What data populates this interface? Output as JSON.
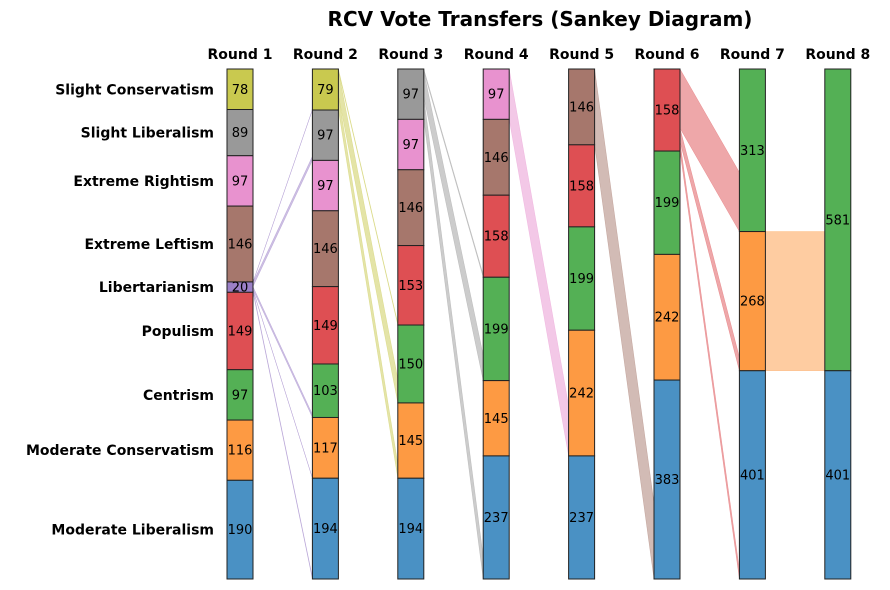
{
  "title": "RCV Vote Transfers (Sankey Diagram)",
  "colors": {
    "Slight Conservatism": "#c9c94f",
    "Slight Liberalism": "#999999",
    "Extreme Rightism": "#e892cf",
    "Extreme Leftism": "#a6776c",
    "Libertarianism": "#9b80c7",
    "Populism": "#de4f53",
    "Centrism": "#54b055",
    "Moderate Conservatism": "#fd9a43",
    "Moderate Liberalism": "#4a91c4"
  },
  "chart_data": {
    "type": "sankey",
    "title": "RCV Vote Transfers (Sankey Diagram)",
    "candidates": [
      "Slight Conservatism",
      "Slight Liberalism",
      "Extreme Rightism",
      "Extreme Leftism",
      "Libertarianism",
      "Populism",
      "Centrism",
      "Moderate Conservatism",
      "Moderate Liberalism"
    ],
    "rounds": [
      {
        "label": "Round 1",
        "segments": [
          {
            "candidate": "Slight Conservatism",
            "votes": 78
          },
          {
            "candidate": "Slight Liberalism",
            "votes": 89
          },
          {
            "candidate": "Extreme Rightism",
            "votes": 97
          },
          {
            "candidate": "Extreme Leftism",
            "votes": 146
          },
          {
            "candidate": "Libertarianism",
            "votes": 20
          },
          {
            "candidate": "Populism",
            "votes": 149
          },
          {
            "candidate": "Centrism",
            "votes": 97
          },
          {
            "candidate": "Moderate Conservatism",
            "votes": 116
          },
          {
            "candidate": "Moderate Liberalism",
            "votes": 190
          }
        ]
      },
      {
        "label": "Round 2",
        "segments": [
          {
            "candidate": "Slight Conservatism",
            "votes": 79
          },
          {
            "candidate": "Slight Liberalism",
            "votes": 97
          },
          {
            "candidate": "Extreme Rightism",
            "votes": 97
          },
          {
            "candidate": "Extreme Leftism",
            "votes": 146
          },
          {
            "candidate": "Populism",
            "votes": 149
          },
          {
            "candidate": "Centrism",
            "votes": 103
          },
          {
            "candidate": "Moderate Conservatism",
            "votes": 117
          },
          {
            "candidate": "Moderate Liberalism",
            "votes": 194
          }
        ]
      },
      {
        "label": "Round 3",
        "segments": [
          {
            "candidate": "Slight Liberalism",
            "votes": 97
          },
          {
            "candidate": "Extreme Rightism",
            "votes": 97
          },
          {
            "candidate": "Extreme Leftism",
            "votes": 146
          },
          {
            "candidate": "Populism",
            "votes": 153
          },
          {
            "candidate": "Centrism",
            "votes": 150
          },
          {
            "candidate": "Moderate Conservatism",
            "votes": 145
          },
          {
            "candidate": "Moderate Liberalism",
            "votes": 194
          }
        ]
      },
      {
        "label": "Round 4",
        "segments": [
          {
            "candidate": "Extreme Rightism",
            "votes": 97
          },
          {
            "candidate": "Extreme Leftism",
            "votes": 146
          },
          {
            "candidate": "Populism",
            "votes": 158
          },
          {
            "candidate": "Centrism",
            "votes": 199
          },
          {
            "candidate": "Moderate Conservatism",
            "votes": 145
          },
          {
            "candidate": "Moderate Liberalism",
            "votes": 237
          }
        ]
      },
      {
        "label": "Round 5",
        "segments": [
          {
            "candidate": "Extreme Leftism",
            "votes": 146
          },
          {
            "candidate": "Populism",
            "votes": 158
          },
          {
            "candidate": "Centrism",
            "votes": 199
          },
          {
            "candidate": "Moderate Conservatism",
            "votes": 242
          },
          {
            "candidate": "Moderate Liberalism",
            "votes": 237
          }
        ]
      },
      {
        "label": "Round 6",
        "segments": [
          {
            "candidate": "Populism",
            "votes": 158
          },
          {
            "candidate": "Centrism",
            "votes": 199
          },
          {
            "candidate": "Moderate Conservatism",
            "votes": 242
          },
          {
            "candidate": "Moderate Liberalism",
            "votes": 383
          }
        ]
      },
      {
        "label": "Round 7",
        "segments": [
          {
            "candidate": "Centrism",
            "votes": 313
          },
          {
            "candidate": "Moderate Conservatism",
            "votes": 268
          },
          {
            "candidate": "Moderate Liberalism",
            "votes": 401
          }
        ]
      },
      {
        "label": "Round 8",
        "segments": [
          {
            "candidate": "Centrism",
            "votes": 581
          },
          {
            "candidate": "Moderate Liberalism",
            "votes": 401
          }
        ]
      }
    ],
    "transfers": [
      {
        "from_round": 0,
        "from": "Libertarianism",
        "to": "Slight Conservatism",
        "votes": 1
      },
      {
        "from_round": 0,
        "from": "Libertarianism",
        "to": "Slight Liberalism",
        "votes": 8
      },
      {
        "from_round": 0,
        "from": "Libertarianism",
        "to": "Centrism",
        "votes": 6
      },
      {
        "from_round": 0,
        "from": "Libertarianism",
        "to": "Moderate Conservatism",
        "votes": 1
      },
      {
        "from_round": 0,
        "from": "Libertarianism",
        "to": "Moderate Liberalism",
        "votes": 4
      },
      {
        "from_round": 1,
        "from": "Slight Conservatism",
        "to": "Populism",
        "votes": 4
      },
      {
        "from_round": 1,
        "from": "Slight Conservatism",
        "to": "Centrism",
        "votes": 47
      },
      {
        "from_round": 1,
        "from": "Slight Conservatism",
        "to": "Moderate Conservatism",
        "votes": 28
      },
      {
        "from_round": 2,
        "from": "Slight Liberalism",
        "to": "Populism",
        "votes": 5
      },
      {
        "from_round": 2,
        "from": "Slight Liberalism",
        "to": "Centrism",
        "votes": 49
      },
      {
        "from_round": 2,
        "from": "Slight Liberalism",
        "to": "Moderate Liberalism",
        "votes": 43
      },
      {
        "from_round": 3,
        "from": "Extreme Rightism",
        "to": "Moderate Conservatism",
        "votes": 97
      },
      {
        "from_round": 4,
        "from": "Extreme Leftism",
        "to": "Moderate Liberalism",
        "votes": 146
      },
      {
        "from_round": 5,
        "from": "Populism",
        "to": "Centrism",
        "votes": 114
      },
      {
        "from_round": 5,
        "from": "Populism",
        "to": "Moderate Conservatism",
        "votes": 26
      },
      {
        "from_round": 5,
        "from": "Populism",
        "to": "Moderate Liberalism",
        "votes": 18
      },
      {
        "from_round": 6,
        "from": "Moderate Conservatism",
        "to": "Centrism",
        "votes": 268
      }
    ]
  }
}
